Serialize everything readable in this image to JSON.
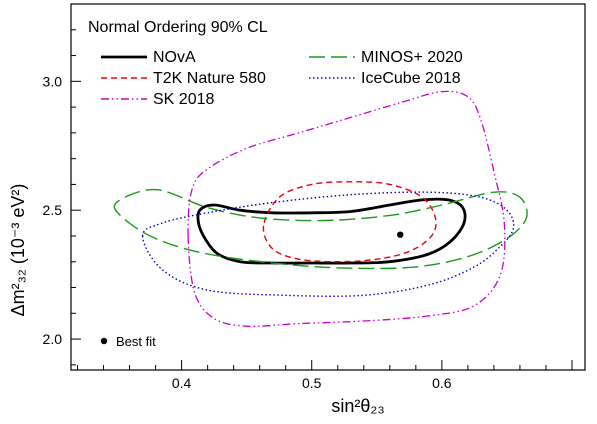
{
  "chart_data": {
    "type": "line",
    "title": "Normal Ordering 90% CL",
    "xlabel": "sin²θ₂₃",
    "ylabel": "Δm²₃₂ (10⁻³ eV²)",
    "xlim": [
      0.315,
      0.71
    ],
    "ylim": [
      1.88,
      3.3
    ],
    "xticks": [
      "0.4",
      "0.5",
      "0.6"
    ],
    "yticks": [
      "2.0",
      "2.5",
      "3.0"
    ],
    "grid": false,
    "legend_position": "top",
    "series": [
      {
        "name": "NOvA",
        "color": "#000000",
        "style": "solid",
        "x": [
          0.413,
          0.418,
          0.428,
          0.445,
          0.47,
          0.5,
          0.53,
          0.56,
          0.59,
          0.607,
          0.617,
          0.616,
          0.605,
          0.585,
          0.56,
          0.53,
          0.5,
          0.47,
          0.445,
          0.425,
          0.414,
          0.413
        ],
        "y": [
          2.45,
          2.39,
          2.33,
          2.3,
          2.295,
          2.295,
          2.295,
          2.3,
          2.33,
          2.38,
          2.45,
          2.51,
          2.54,
          2.54,
          2.52,
          2.495,
          2.49,
          2.49,
          2.5,
          2.52,
          2.5,
          2.45
        ]
      },
      {
        "name": "T2K Nature 580",
        "color": "#e8000b",
        "style": "dashed",
        "x": [
          0.463,
          0.47,
          0.49,
          0.52,
          0.55,
          0.575,
          0.592,
          0.595,
          0.585,
          0.56,
          0.53,
          0.5,
          0.475,
          0.463
        ],
        "y": [
          2.44,
          2.35,
          2.31,
          2.3,
          2.31,
          2.34,
          2.4,
          2.47,
          2.55,
          2.6,
          2.61,
          2.6,
          2.55,
          2.44
        ]
      },
      {
        "name": "MINOS+ 2020",
        "color": "#1a9a1a",
        "style": "longdash",
        "x": [
          0.35,
          0.355,
          0.38,
          0.42,
          0.48,
          0.53,
          0.58,
          0.62,
          0.65,
          0.665,
          0.66,
          0.64,
          0.6,
          0.56,
          0.51,
          0.46,
          0.42,
          0.38,
          0.35
        ],
        "y": [
          2.53,
          2.47,
          2.39,
          2.33,
          2.29,
          2.275,
          2.28,
          2.32,
          2.39,
          2.47,
          2.55,
          2.57,
          2.52,
          2.48,
          2.46,
          2.47,
          2.51,
          2.58,
          2.53
        ]
      },
      {
        "name": "IceCube 2018",
        "color": "#0000cd",
        "style": "dotted",
        "x": [
          0.37,
          0.385,
          0.42,
          0.48,
          0.54,
          0.59,
          0.625,
          0.645,
          0.655,
          0.65,
          0.63,
          0.59,
          0.53,
          0.47,
          0.42,
          0.385,
          0.37
        ],
        "y": [
          2.4,
          2.27,
          2.19,
          2.17,
          2.17,
          2.21,
          2.28,
          2.36,
          2.43,
          2.5,
          2.55,
          2.57,
          2.56,
          2.53,
          2.49,
          2.45,
          2.4
        ]
      },
      {
        "name": "SK 2018",
        "color": "#cc00cc",
        "style": "dashdotdot",
        "x": [
          0.405,
          0.41,
          0.425,
          0.45,
          0.49,
          0.54,
          0.59,
          0.625,
          0.645,
          0.648,
          0.64,
          0.63,
          0.62,
          0.6,
          0.57,
          0.53,
          0.49,
          0.45,
          0.42,
          0.408,
          0.405
        ],
        "y": [
          2.4,
          2.18,
          2.08,
          2.05,
          2.06,
          2.07,
          2.09,
          2.13,
          2.25,
          2.45,
          2.65,
          2.85,
          2.94,
          2.96,
          2.92,
          2.86,
          2.8,
          2.74,
          2.66,
          2.58,
          2.4
        ]
      }
    ],
    "best_fit": {
      "label": "Best fit",
      "x": 0.568,
      "y": 2.405
    }
  }
}
